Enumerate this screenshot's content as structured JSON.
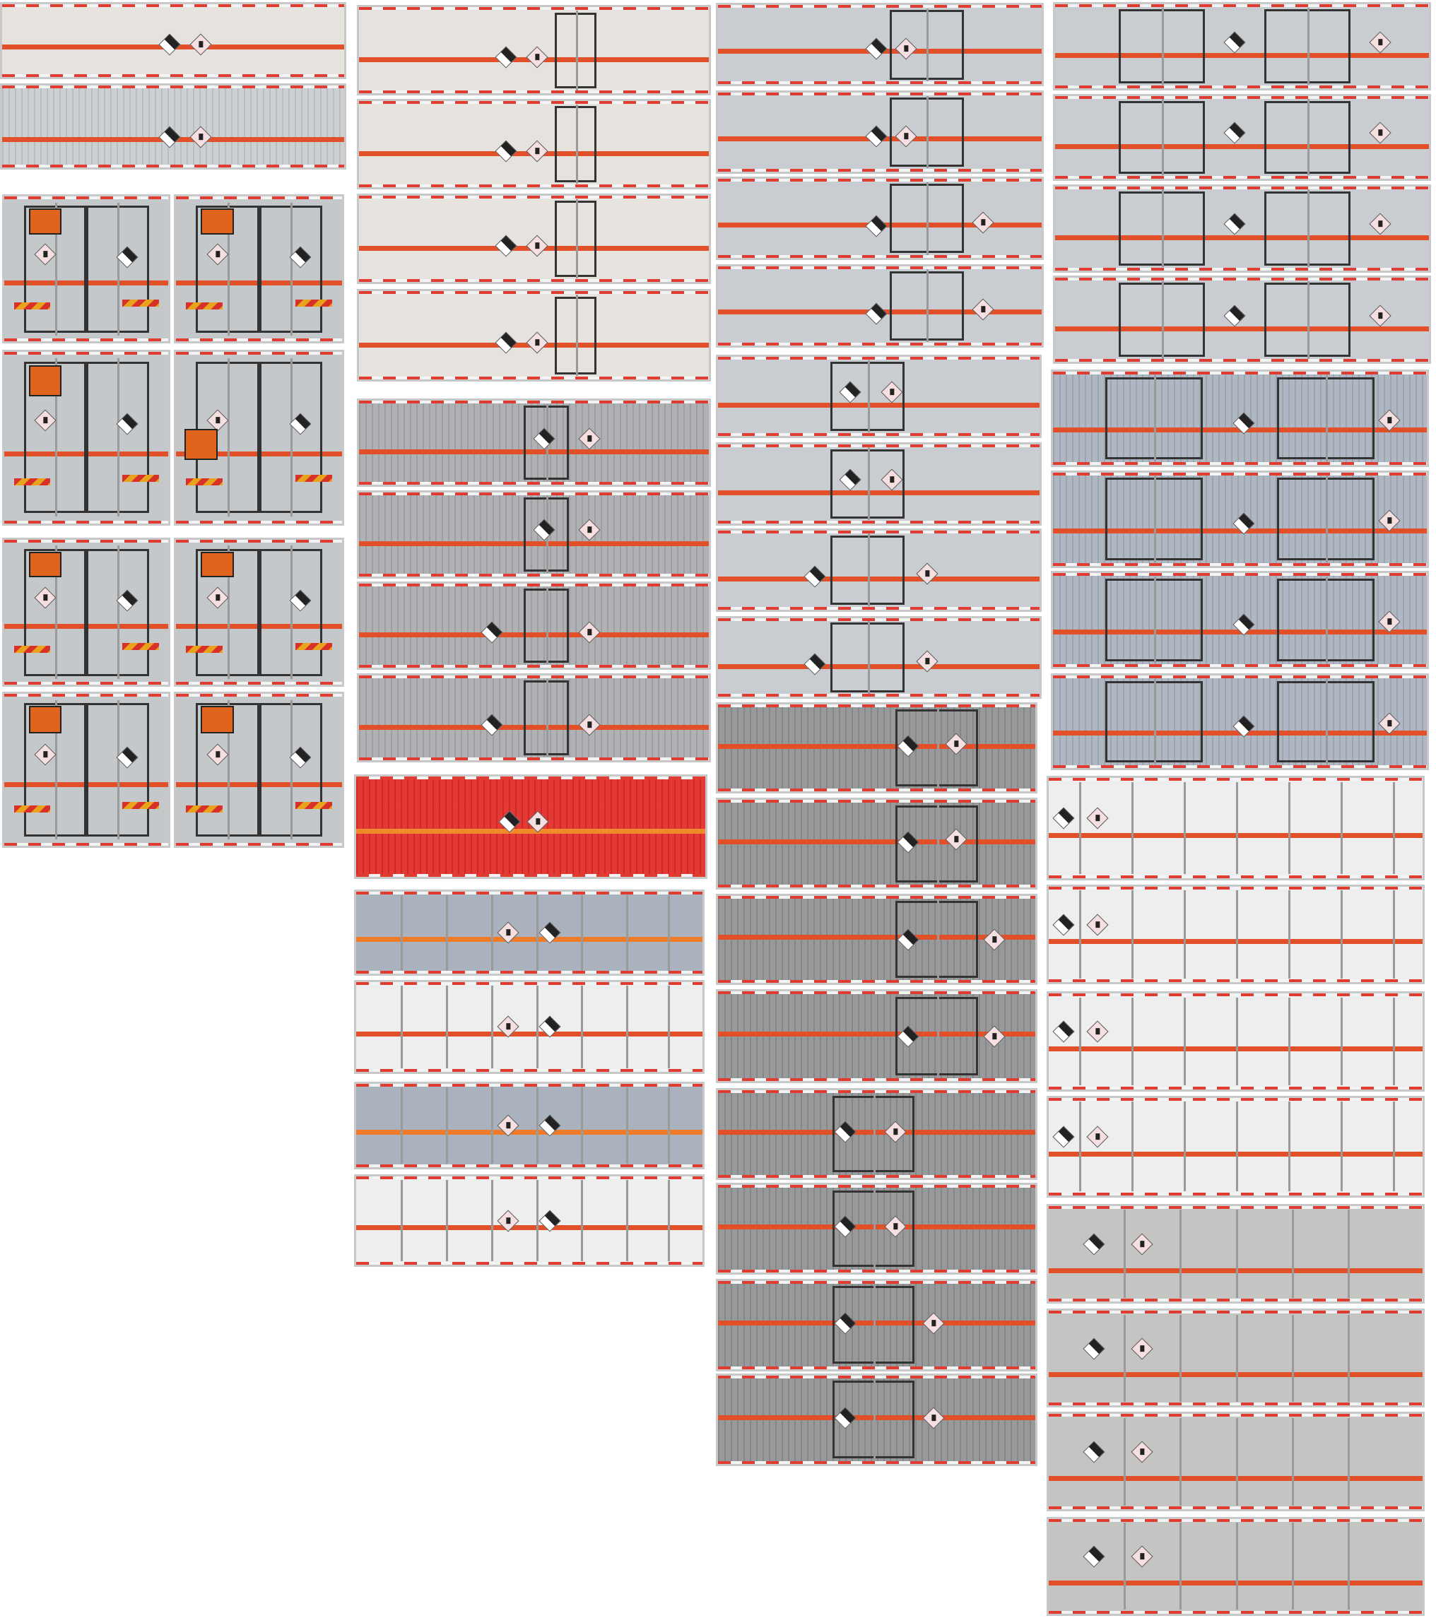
{
  "colors": {
    "stripe": "#e2502a",
    "hazard_border": "#e03c31",
    "panel_cream": "#e6e3de",
    "panel_silver": "#c9ccd0",
    "panel_gray": "#a9abae",
    "panel_dark_gray": "#8f9193",
    "panel_blue_gray": "#a9b2bd",
    "panel_red": "#e12b27",
    "panel_white": "#eeeeee",
    "orange_plate": "#e0641b"
  },
  "icons": [
    "class-9-hazard-diamond",
    "environmental-hazard-diamond",
    "orange-hazard-plate",
    "rear-reflective-chevron"
  ]
}
